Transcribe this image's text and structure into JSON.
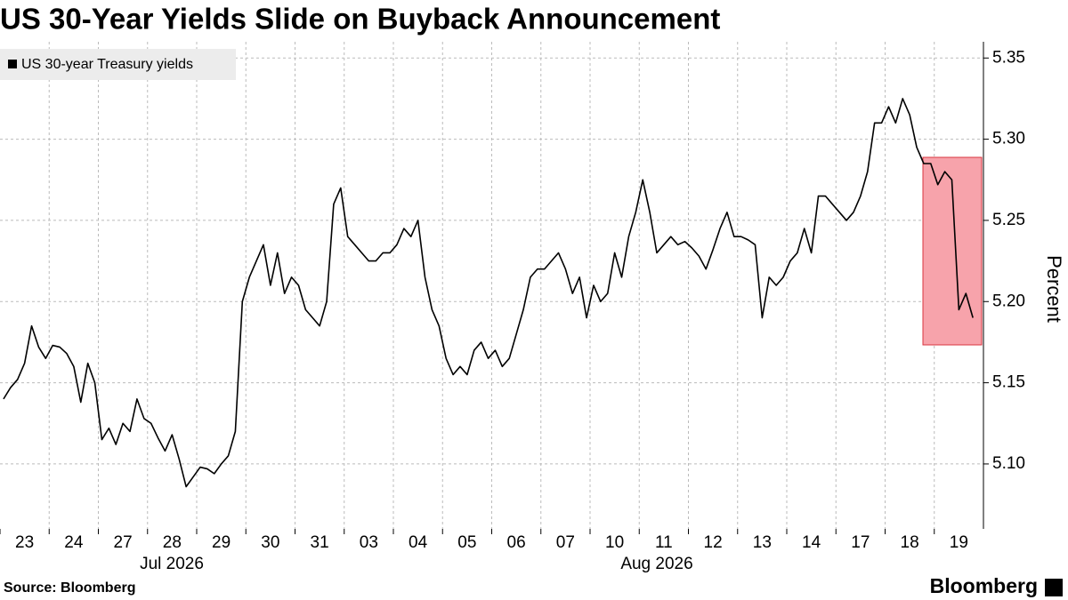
{
  "chart_data": {
    "type": "line",
    "title": "US 30-Year Yields Slide on Buyback Announcement",
    "y_axis_label": "Percent",
    "source": "Source: Bloomberg",
    "brand": "Bloomberg",
    "x_groups": [
      "Jul 2026",
      "Aug 2026"
    ],
    "categories": [
      null,
      null,
      null,
      "23",
      null,
      null,
      null,
      null,
      null,
      null,
      "24",
      null,
      null,
      null,
      null,
      null,
      null,
      "27",
      null,
      null,
      null,
      null,
      null,
      null,
      "28",
      null,
      null,
      null,
      null,
      null,
      null,
      "29",
      null,
      null,
      null,
      null,
      null,
      null,
      "30",
      null,
      null,
      null,
      null,
      null,
      null,
      "31",
      null,
      null,
      null,
      null,
      null,
      null,
      "03",
      null,
      null,
      null,
      null,
      null,
      null,
      "04",
      null,
      null,
      null,
      null,
      null,
      null,
      "05",
      null,
      null,
      null,
      null,
      null,
      null,
      "06",
      null,
      null,
      null,
      null,
      null,
      null,
      "07",
      null,
      null,
      null,
      null,
      null,
      null,
      "10",
      null,
      null,
      null,
      null,
      null,
      null,
      "11",
      null,
      null,
      null,
      null,
      null,
      null,
      "12",
      null,
      null,
      null,
      null,
      null,
      null,
      "13",
      null,
      null,
      null,
      null,
      null,
      null,
      "14",
      null,
      null,
      null,
      null,
      null,
      null,
      "17",
      null,
      null,
      null,
      null,
      null,
      null,
      "18",
      null,
      null,
      null,
      null,
      null,
      null,
      "19",
      null,
      null,
      null
    ],
    "series": [
      {
        "name": "US 30-year Treasury yields",
        "color": "#000000",
        "values": [
          5.14,
          5.147,
          5.152,
          5.162,
          5.185,
          5.172,
          5.165,
          5.173,
          5.172,
          5.168,
          5.16,
          5.138,
          5.162,
          5.15,
          5.115,
          5.122,
          5.112,
          5.125,
          5.12,
          5.14,
          5.128,
          5.125,
          5.116,
          5.108,
          5.118,
          5.103,
          5.086,
          5.092,
          5.098,
          5.097,
          5.094,
          5.1,
          5.105,
          5.12,
          5.2,
          5.215,
          5.225,
          5.235,
          5.21,
          5.23,
          5.205,
          5.215,
          5.21,
          5.195,
          5.19,
          5.185,
          5.2,
          5.26,
          5.27,
          5.24,
          5.235,
          5.23,
          5.225,
          5.225,
          5.23,
          5.23,
          5.235,
          5.245,
          5.24,
          5.25,
          5.215,
          5.195,
          5.185,
          5.165,
          5.155,
          5.16,
          5.155,
          5.17,
          5.175,
          5.165,
          5.17,
          5.16,
          5.165,
          5.18,
          5.195,
          5.215,
          5.22,
          5.22,
          5.225,
          5.23,
          5.22,
          5.205,
          5.215,
          5.19,
          5.21,
          5.2,
          5.205,
          5.23,
          5.215,
          5.24,
          5.255,
          5.275,
          5.255,
          5.23,
          5.235,
          5.24,
          5.235,
          5.237,
          5.233,
          5.228,
          5.22,
          5.232,
          5.245,
          5.255,
          5.24,
          5.24,
          5.238,
          5.235,
          5.19,
          5.215,
          5.21,
          5.215,
          5.225,
          5.23,
          5.245,
          5.23,
          5.265,
          5.265,
          5.26,
          5.255,
          5.25,
          5.255,
          5.265,
          5.28,
          5.31,
          5.31,
          5.32,
          5.31,
          5.325,
          5.315,
          5.295,
          5.285,
          5.285,
          5.272,
          5.28,
          5.275,
          5.195,
          5.205,
          5.19,
          null
        ]
      }
    ],
    "ylim": [
      5.06,
      5.36
    ],
    "yticks": [
      {
        "value": 5.1,
        "label": "5.10"
      },
      5.15,
      {
        "value": 5.2,
        "label": "5.20"
      },
      5.25,
      {
        "value": 5.3,
        "label": "5.30"
      },
      5.35
    ],
    "grid": true,
    "legend": "top-left"
  }
}
